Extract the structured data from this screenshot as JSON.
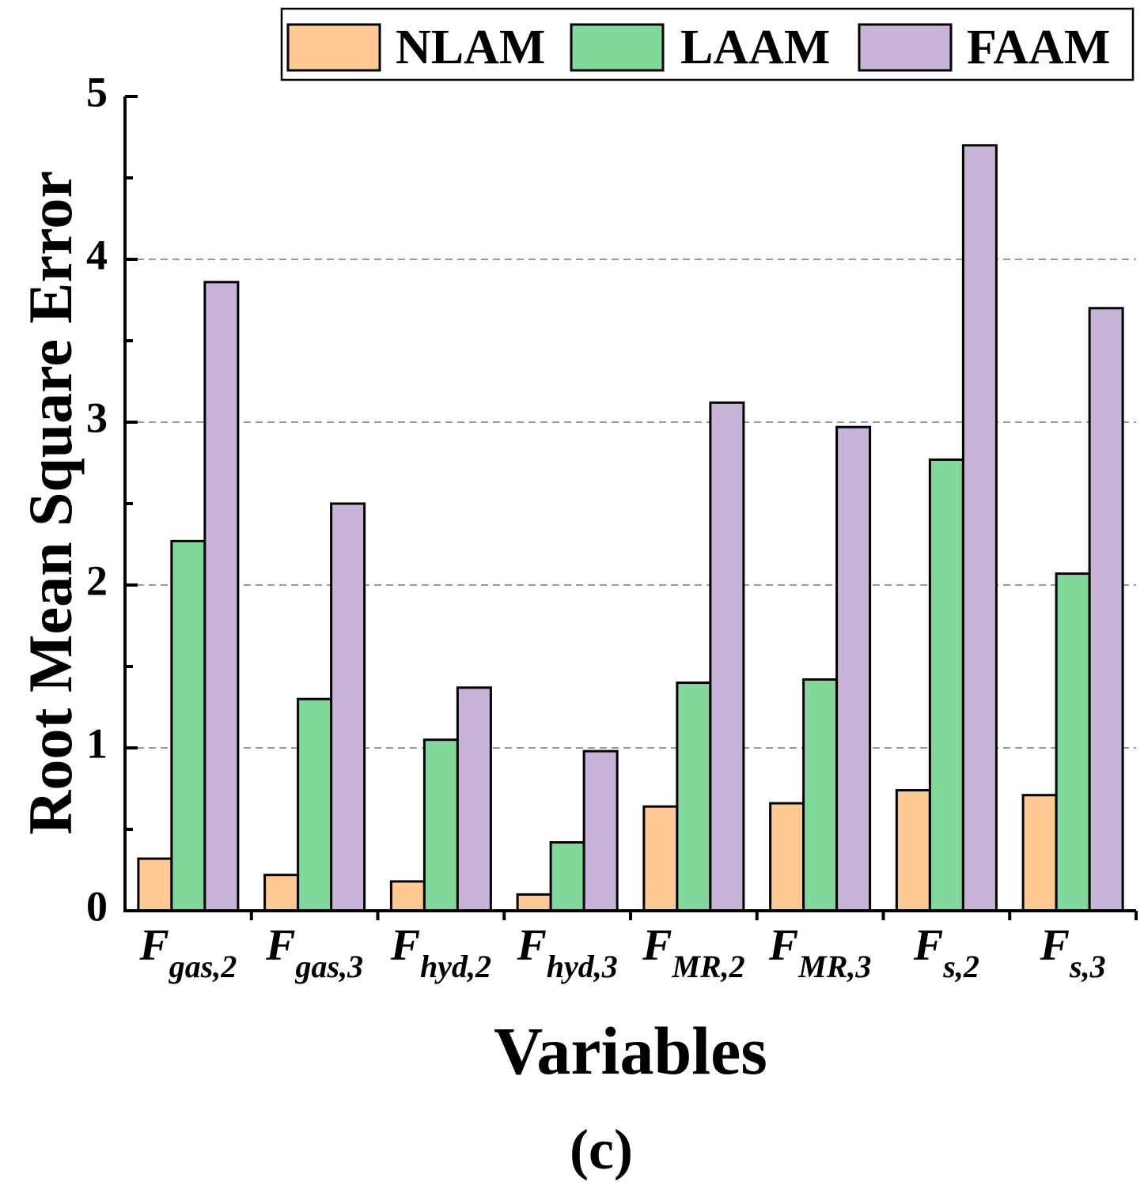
{
  "chart_data": {
    "type": "bar",
    "title": "",
    "xlabel": "Variables",
    "ylabel": "Root Mean Square Error",
    "panel_label": "(c)",
    "ylim": [
      0,
      5
    ],
    "yticks": [
      "0",
      "1",
      "2",
      "3",
      "4",
      "5"
    ],
    "grid": "horizontal dashed at major ticks",
    "legend_position": "top",
    "categories": [
      {
        "main": "F",
        "sub": "gas,2"
      },
      {
        "main": "F",
        "sub": "gas,3"
      },
      {
        "main": "F",
        "sub": "hyd,2"
      },
      {
        "main": "F",
        "sub": "hyd,3"
      },
      {
        "main": "F",
        "sub": "MR,2"
      },
      {
        "main": "F",
        "sub": "MR,3"
      },
      {
        "main": "F",
        "sub": "s,2"
      },
      {
        "main": "F",
        "sub": "s,3"
      }
    ],
    "series": [
      {
        "name": "NLAM",
        "color": "#FFC993",
        "values": [
          0.32,
          0.22,
          0.18,
          0.1,
          0.64,
          0.66,
          0.74,
          0.71
        ]
      },
      {
        "name": "LAAM",
        "color": "#80D99B",
        "values": [
          2.27,
          1.3,
          1.05,
          0.42,
          1.4,
          1.42,
          2.77,
          2.07
        ]
      },
      {
        "name": "FAAM",
        "color": "#C8B4D9",
        "values": [
          3.86,
          2.5,
          1.37,
          0.98,
          3.12,
          2.97,
          4.7,
          3.7
        ]
      }
    ]
  }
}
